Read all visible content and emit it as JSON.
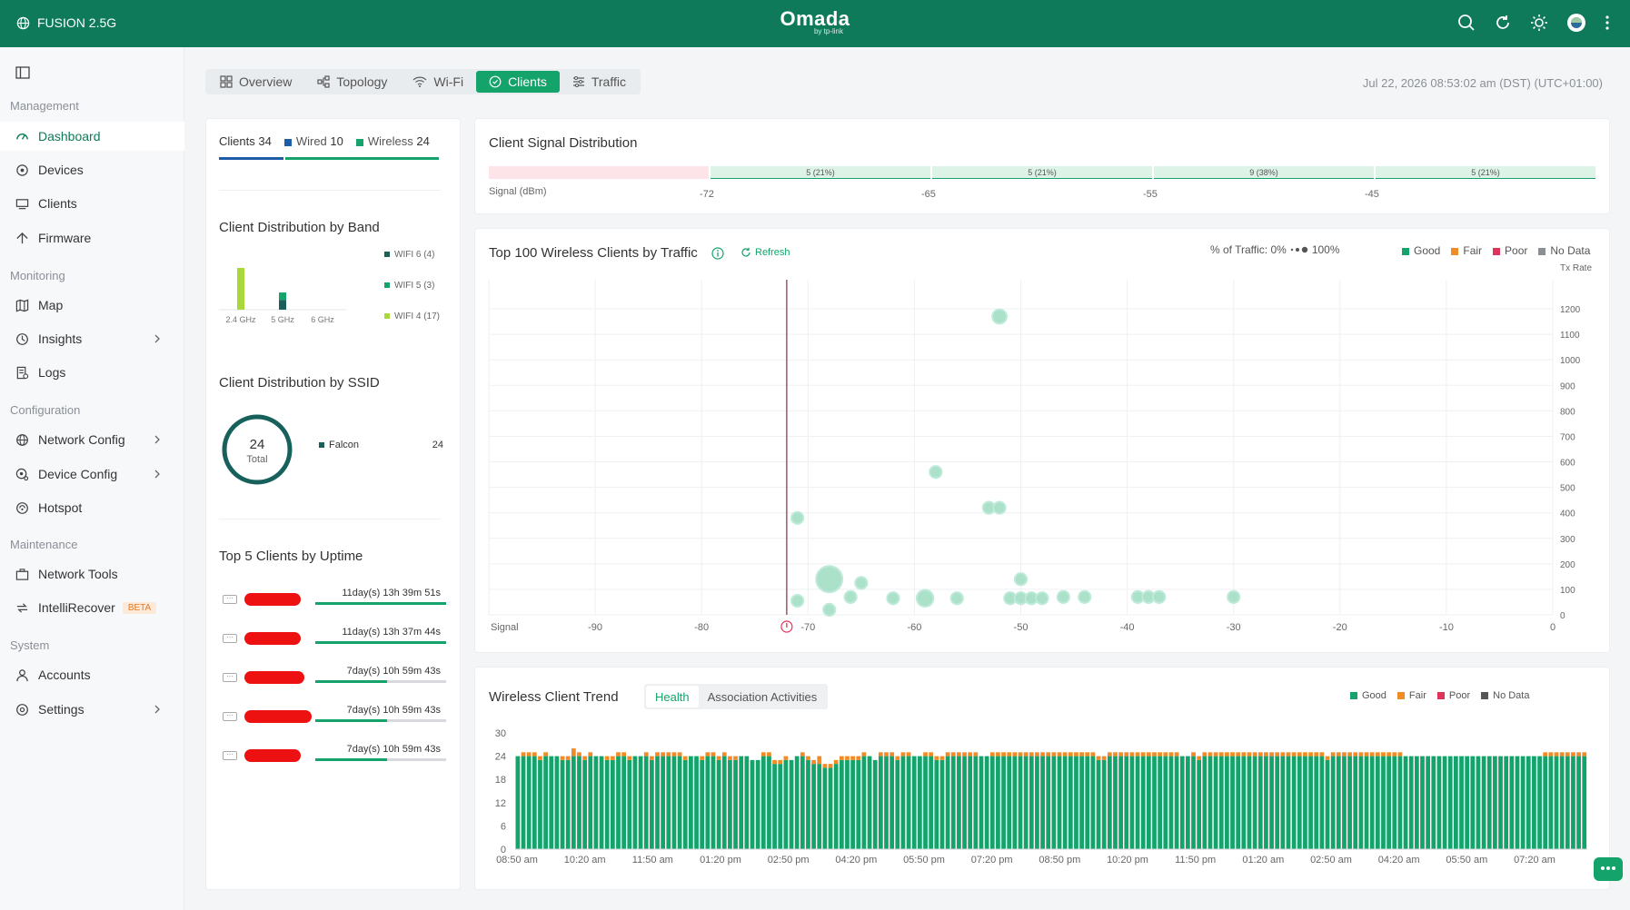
{
  "header": {
    "site_name": "FUSION 2.5G",
    "brand": "Omada",
    "brand_sub": "by tp-link",
    "icons": [
      "search-icon",
      "refresh-icon",
      "theme-icon",
      "avatar",
      "more-icon"
    ]
  },
  "sidebar": {
    "sections": [
      {
        "label": "Management",
        "items": [
          {
            "label": "Dashboard",
            "icon": "dashboard-icon",
            "active": true
          },
          {
            "label": "Devices",
            "icon": "devices-icon"
          },
          {
            "label": "Clients",
            "icon": "clients-icon"
          },
          {
            "label": "Firmware",
            "icon": "firmware-icon"
          }
        ]
      },
      {
        "label": "Monitoring",
        "items": [
          {
            "label": "Map",
            "icon": "map-icon"
          },
          {
            "label": "Insights",
            "icon": "insights-icon",
            "chevron": true
          },
          {
            "label": "Logs",
            "icon": "logs-icon"
          }
        ]
      },
      {
        "label": "Configuration",
        "items": [
          {
            "label": "Network Config",
            "icon": "globe-icon",
            "chevron": true
          },
          {
            "label": "Device Config",
            "icon": "device-config-icon",
            "chevron": true
          },
          {
            "label": "Hotspot",
            "icon": "hotspot-icon"
          }
        ]
      },
      {
        "label": "Maintenance",
        "items": [
          {
            "label": "Network Tools",
            "icon": "toolbox-icon"
          },
          {
            "label": "IntelliRecover",
            "icon": "recover-icon",
            "badge": "BETA"
          }
        ]
      },
      {
        "label": "System",
        "items": [
          {
            "label": "Accounts",
            "icon": "user-icon"
          },
          {
            "label": "Settings",
            "icon": "settings-icon",
            "chevron": true
          }
        ]
      }
    ]
  },
  "tabs": [
    {
      "label": "Overview",
      "icon": "grid-icon"
    },
    {
      "label": "Topology",
      "icon": "topology-icon"
    },
    {
      "label": "Wi-Fi",
      "icon": "wifi-icon"
    },
    {
      "label": "Clients",
      "icon": "clients-tab-icon",
      "active": true
    },
    {
      "label": "Traffic",
      "icon": "traffic-icon"
    }
  ],
  "datetime": "Jul 22, 2026 08:53:02 am (DST) (UTC+01:00)",
  "clients_summary": {
    "clients_label": "Clients",
    "clients_count": "34",
    "wired_label": "Wired",
    "wired_count": "10",
    "wireless_label": "Wireless",
    "wireless_count": "24"
  },
  "band_distribution": {
    "title": "Client Distribution by Band",
    "categories": [
      "2.4 GHz",
      "5 GHz",
      "6 GHz"
    ],
    "legend": [
      "WIFI 6 (4)",
      "WIFI 5 (3)",
      "WIFI 4 (17)"
    ],
    "colors": {
      "wifi6": "#1b5e5a",
      "wifi5": "#14a46b",
      "wifi4": "#a8d83a"
    },
    "series": [
      {
        "name": "WIFI 6",
        "values": [
          0,
          4,
          0
        ]
      },
      {
        "name": "WIFI 5",
        "values": [
          0,
          3,
          0
        ]
      },
      {
        "name": "WIFI 4",
        "values": [
          17,
          0,
          0
        ]
      }
    ]
  },
  "ssid_distribution": {
    "title": "Client Distribution by SSID",
    "total": "24",
    "total_label": "Total",
    "ssid_name": "Falcon",
    "ssid_count": "24"
  },
  "uptime": {
    "title": "Top 5 Clients by Uptime",
    "rows": [
      {
        "time": "11day(s) 13h 39m 51s",
        "fraction": 1.0
      },
      {
        "time": "11day(s) 13h 37m 44s",
        "fraction": 1.0
      },
      {
        "time": "7day(s) 10h 59m 43s",
        "fraction": 0.55
      },
      {
        "time": "7day(s) 10h 59m 43s",
        "fraction": 0.55
      },
      {
        "time": "7day(s) 10h 59m 43s",
        "fraction": 0.55
      }
    ]
  },
  "signal_distribution": {
    "title": "Client Signal Distribution",
    "axis_label": "Signal (dBm)",
    "ticks": [
      "-72",
      "-65",
      "-55",
      "-45"
    ],
    "segments": [
      {
        "label": "",
        "share": 0.2,
        "kind": "poor"
      },
      {
        "label": "5 (21%)",
        "share": 0.2,
        "kind": "good"
      },
      {
        "label": "5 (21%)",
        "share": 0.2,
        "kind": "good"
      },
      {
        "label": "9 (38%)",
        "share": 0.2,
        "kind": "good"
      },
      {
        "label": "5 (21%)",
        "share": 0.2,
        "kind": "good"
      }
    ]
  },
  "scatter": {
    "title": "Top 100 Wireless Clients by Traffic",
    "refresh_label": "Refresh",
    "traffic_label": "% of Traffic: 0%",
    "traffic_max": "100%",
    "legend": [
      {
        "label": "Good",
        "color": "#14a46b"
      },
      {
        "label": "Fair",
        "color": "#f08b25"
      },
      {
        "label": "Poor",
        "color": "#e0335a"
      },
      {
        "label": "No Data",
        "color": "#8a8f96"
      }
    ]
  },
  "trend": {
    "title": "Wireless Client Trend",
    "tabs": [
      "Health",
      "Association Activities"
    ],
    "active_tab": "Health",
    "legend": [
      {
        "label": "Good",
        "color": "#14a46b"
      },
      {
        "label": "Fair",
        "color": "#f08b25"
      },
      {
        "label": "Poor",
        "color": "#e0335a"
      },
      {
        "label": "No Data",
        "color": "#555555"
      }
    ]
  },
  "chart_data": [
    {
      "type": "scatter",
      "title": "Top 100 Wireless Clients by Traffic",
      "xlabel": "Signal",
      "ylabel": "Tx Rate",
      "xlim": [
        -100,
        0
      ],
      "ylim": [
        0,
        1300
      ],
      "x_ticks": [
        "-90",
        "-80",
        "-70",
        "-60",
        "-50",
        "-40",
        "-30",
        "-20",
        "-10",
        "0"
      ],
      "y_ticks": [
        "0",
        "100",
        "200",
        "300",
        "400",
        "500",
        "600",
        "700",
        "800",
        "900",
        "1000",
        "1100",
        "1200"
      ],
      "threshold_x": -72,
      "points": [
        {
          "x": -52,
          "y": 1170,
          "traffic": 3
        },
        {
          "x": -58,
          "y": 560,
          "traffic": 2
        },
        {
          "x": -71,
          "y": 380,
          "traffic": 2
        },
        {
          "x": -53,
          "y": 420,
          "traffic": 2
        },
        {
          "x": -52,
          "y": 420,
          "traffic": 2
        },
        {
          "x": -68,
          "y": 140,
          "traffic": 8
        },
        {
          "x": -65,
          "y": 125,
          "traffic": 2
        },
        {
          "x": -50,
          "y": 140,
          "traffic": 2
        },
        {
          "x": -71,
          "y": 55,
          "traffic": 2
        },
        {
          "x": -68,
          "y": 20,
          "traffic": 2
        },
        {
          "x": -66,
          "y": 70,
          "traffic": 2
        },
        {
          "x": -62,
          "y": 65,
          "traffic": 2
        },
        {
          "x": -59,
          "y": 65,
          "traffic": 4
        },
        {
          "x": -56,
          "y": 65,
          "traffic": 2
        },
        {
          "x": -51,
          "y": 65,
          "traffic": 2
        },
        {
          "x": -50,
          "y": 65,
          "traffic": 2
        },
        {
          "x": -49,
          "y": 65,
          "traffic": 2
        },
        {
          "x": -48,
          "y": 65,
          "traffic": 2
        },
        {
          "x": -46,
          "y": 70,
          "traffic": 2
        },
        {
          "x": -44,
          "y": 70,
          "traffic": 2
        },
        {
          "x": -39,
          "y": 70,
          "traffic": 2
        },
        {
          "x": -38,
          "y": 70,
          "traffic": 2
        },
        {
          "x": -37,
          "y": 70,
          "traffic": 2
        },
        {
          "x": -30,
          "y": 70,
          "traffic": 2
        }
      ]
    },
    {
      "type": "bar",
      "title": "Wireless Client Trend",
      "stacked": true,
      "ylim": [
        0,
        30
      ],
      "y_ticks": [
        "0",
        "6",
        "12",
        "18",
        "24",
        "30"
      ],
      "x_labels": [
        "08:50 am",
        "10:20 am",
        "11:50 am",
        "01:20 pm",
        "02:50 pm",
        "04:20 pm",
        "05:50 pm",
        "07:20 pm",
        "08:50 pm",
        "10:20 pm",
        "11:50 pm",
        "01:20 am",
        "02:50 am",
        "04:20 am",
        "05:50 am",
        "07:20 am"
      ],
      "good": [
        24,
        24,
        24,
        24,
        23,
        24,
        24,
        24,
        23,
        23,
        24,
        24,
        23,
        24,
        24,
        24,
        23,
        23,
        24,
        24,
        23,
        24,
        24,
        24,
        23,
        24,
        24,
        24,
        24,
        24,
        23,
        24,
        24,
        23,
        24,
        24,
        23,
        24,
        23,
        23,
        24,
        24,
        23,
        23,
        24,
        24,
        22,
        22,
        23,
        23,
        24,
        24,
        23,
        22,
        22,
        21,
        21,
        22,
        23,
        23,
        23,
        23,
        24,
        24,
        23,
        24,
        24,
        24,
        23,
        24,
        24,
        24,
        24,
        24,
        24,
        23,
        23,
        24,
        24,
        24,
        24,
        24,
        24,
        24,
        24,
        24,
        24,
        24,
        24,
        24,
        24,
        24,
        24,
        24,
        24,
        24,
        24,
        24,
        24,
        24,
        24,
        24,
        24,
        24,
        23,
        23,
        24,
        24,
        24,
        24,
        24,
        24,
        24,
        24,
        24,
        24,
        24,
        24,
        24,
        24,
        24,
        24,
        23,
        24,
        24,
        24,
        24,
        24,
        24,
        24,
        24,
        24,
        24,
        24,
        24,
        24,
        24,
        24,
        24,
        24,
        24,
        24,
        24,
        24,
        24,
        23,
        24,
        24,
        24,
        24,
        24,
        24,
        24,
        24,
        24,
        24,
        24,
        24,
        24,
        24,
        24,
        24,
        24,
        24,
        24,
        24,
        24,
        24,
        24,
        24,
        24,
        24,
        24,
        24,
        24,
        24,
        24,
        24,
        24,
        24,
        24,
        24,
        24,
        24,
        24,
        24,
        24,
        24,
        24,
        24,
        24,
        24
      ],
      "fair": [
        0,
        1,
        1,
        1,
        1,
        1,
        0,
        0,
        1,
        1,
        2,
        1,
        1,
        1,
        0,
        0,
        1,
        1,
        1,
        1,
        1,
        0,
        0,
        1,
        1,
        1,
        1,
        1,
        1,
        1,
        1,
        0,
        0,
        1,
        1,
        1,
        1,
        1,
        1,
        1,
        0,
        0,
        0,
        0,
        1,
        1,
        1,
        1,
        1,
        0,
        0,
        1,
        1,
        1,
        2,
        1,
        1,
        1,
        1,
        1,
        1,
        1,
        1,
        0,
        0,
        1,
        1,
        1,
        1,
        1,
        1,
        0,
        0,
        1,
        1,
        1,
        1,
        1,
        1,
        1,
        1,
        1,
        1,
        0,
        0,
        1,
        1,
        1,
        1,
        1,
        1,
        1,
        1,
        1,
        1,
        1,
        1,
        1,
        1,
        1,
        1,
        1,
        1,
        1,
        1,
        1,
        1,
        1,
        1,
        1,
        1,
        1,
        1,
        1,
        1,
        1,
        1,
        1,
        1,
        0,
        0,
        1,
        1,
        1,
        1,
        1,
        1,
        1,
        1,
        1,
        1,
        1,
        1,
        1,
        1,
        1,
        1,
        1,
        1,
        1,
        1,
        1,
        1,
        1,
        1,
        1,
        1,
        1,
        1,
        1,
        1,
        1,
        1,
        1,
        1,
        1,
        1,
        1,
        1,
        0,
        0,
        0,
        0,
        0,
        0,
        0,
        0,
        0,
        0,
        0,
        0,
        0,
        0,
        0,
        0,
        0,
        0,
        0,
        0,
        0,
        0,
        0,
        0,
        0,
        1,
        1,
        1,
        1,
        1,
        1,
        1,
        1,
        1,
        1,
        1,
        1,
        1,
        1
      ]
    }
  ]
}
